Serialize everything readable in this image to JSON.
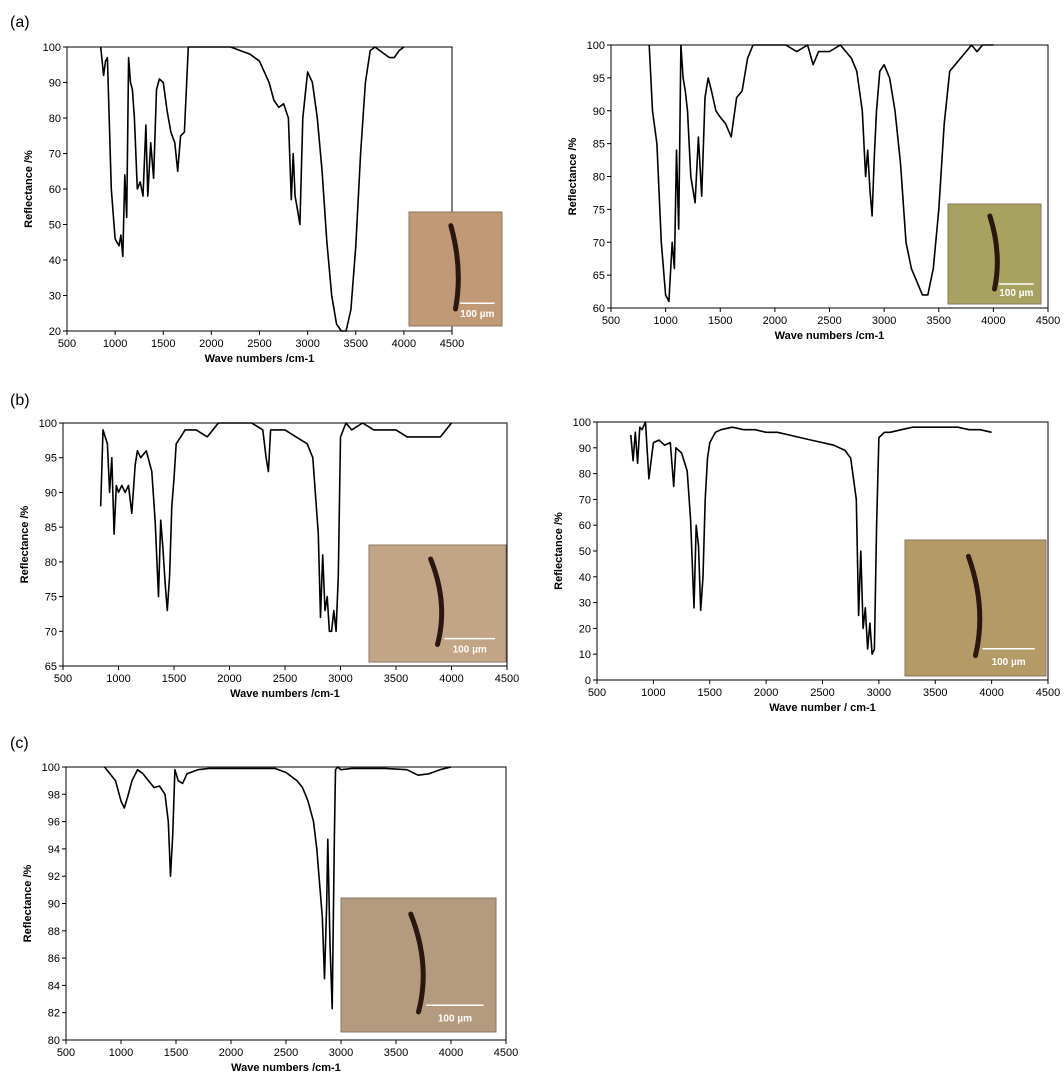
{
  "panel_labels": [
    "(a)",
    "(b)",
    "(c)"
  ],
  "chart_data": [
    {
      "type": "line",
      "panel": "(a)",
      "xlabel": "Wave numbers /cm-1",
      "ylabel": "Reflectance /%",
      "xlim": [
        500,
        4500
      ],
      "ylim": [
        20,
        100
      ],
      "xticks": [
        500,
        1000,
        1500,
        2000,
        2500,
        3000,
        3500,
        4000,
        4500
      ],
      "yticks": [
        20,
        30,
        40,
        50,
        60,
        70,
        80,
        90,
        100
      ],
      "grid": false,
      "inset_scale_label": "100 µm",
      "inset_color": "#c09a76",
      "series": [
        {
          "x": [
            850,
            880,
            900,
            920,
            960,
            1000,
            1040,
            1060,
            1080,
            1100,
            1120,
            1140,
            1160,
            1180,
            1200,
            1230,
            1260,
            1290,
            1320,
            1340,
            1370,
            1400,
            1430,
            1460,
            1500,
            1540,
            1580,
            1620,
            1650,
            1680,
            1720,
            1760,
            1800,
            1900,
            2000,
            2100,
            2200,
            2300,
            2400,
            2500,
            2600,
            2650,
            2700,
            2750,
            2800,
            2830,
            2850,
            2870,
            2890,
            2920,
            2950,
            3000,
            3050,
            3100,
            3150,
            3200,
            3250,
            3300,
            3350,
            3400,
            3450,
            3500,
            3550,
            3600,
            3650,
            3700,
            3750,
            3800,
            3850,
            3900,
            3950,
            4000
          ],
          "y": [
            100,
            92,
            96,
            97,
            60,
            46,
            44,
            47,
            41,
            64,
            52,
            97,
            90,
            88,
            80,
            60,
            62,
            58,
            78,
            58,
            73,
            63,
            88,
            91,
            90,
            82,
            76,
            73,
            65,
            75,
            76,
            100,
            100,
            100,
            100,
            100,
            100,
            99,
            98,
            96,
            90,
            85,
            83,
            84,
            80,
            57,
            70,
            58,
            55,
            50,
            80,
            93,
            90,
            80,
            65,
            45,
            30,
            22,
            20,
            20,
            26,
            44,
            70,
            90,
            99,
            100,
            99,
            98,
            97,
            97,
            99,
            100
          ]
        }
      ]
    },
    {
      "type": "line",
      "panel": "(a)",
      "xlabel": "Wave numbers /cm-1",
      "ylabel": "Reflectance /%",
      "xlim": [
        500,
        4500
      ],
      "ylim": [
        60,
        100
      ],
      "xticks": [
        500,
        1000,
        1500,
        2000,
        2500,
        3000,
        3500,
        4000,
        4500
      ],
      "yticks": [
        60,
        65,
        70,
        75,
        80,
        85,
        90,
        95,
        100
      ],
      "grid": false,
      "inset_scale_label": "100 µm",
      "inset_color": "#a8a260",
      "series": [
        {
          "x": [
            850,
            880,
            920,
            960,
            1000,
            1030,
            1060,
            1080,
            1100,
            1120,
            1140,
            1160,
            1180,
            1200,
            1230,
            1270,
            1300,
            1330,
            1360,
            1390,
            1420,
            1460,
            1500,
            1550,
            1600,
            1650,
            1700,
            1750,
            1800,
            1900,
            2000,
            2100,
            2200,
            2300,
            2350,
            2400,
            2500,
            2600,
            2700,
            2750,
            2800,
            2830,
            2850,
            2870,
            2890,
            2910,
            2930,
            2960,
            3000,
            3050,
            3100,
            3150,
            3200,
            3250,
            3300,
            3350,
            3400,
            3450,
            3500,
            3550,
            3600,
            3650,
            3700,
            3750,
            3800,
            3850,
            3900,
            3950,
            4000
          ],
          "y": [
            100,
            90,
            85,
            70,
            62,
            61,
            70,
            66,
            84,
            72,
            100,
            95,
            93,
            90,
            80,
            76,
            86,
            77,
            92,
            95,
            93,
            90,
            89,
            88,
            86,
            92,
            93,
            98,
            100,
            100,
            100,
            100,
            99,
            100,
            97,
            99,
            99,
            100,
            98,
            96,
            90,
            80,
            84,
            78,
            74,
            83,
            90,
            96,
            97,
            95,
            90,
            82,
            70,
            66,
            64,
            62,
            62,
            66,
            75,
            88,
            96,
            97,
            98,
            99,
            100,
            99,
            100,
            100,
            100
          ]
        }
      ]
    },
    {
      "type": "line",
      "panel": "(b)",
      "xlabel": "Wave numbers /cm-1",
      "ylabel": "Reflectance /%",
      "xlim": [
        500,
        4500
      ],
      "ylim": [
        65,
        100
      ],
      "xticks": [
        500,
        1000,
        1500,
        2000,
        2500,
        3000,
        3500,
        4000,
        4500
      ],
      "yticks": [
        65,
        70,
        75,
        80,
        85,
        90,
        95,
        100
      ],
      "grid": false,
      "inset_scale_label": "100 µm",
      "inset_color": "#c2a486",
      "series": [
        {
          "x": [
            840,
            860,
            880,
            900,
            920,
            940,
            960,
            980,
            1000,
            1030,
            1060,
            1090,
            1120,
            1150,
            1170,
            1200,
            1250,
            1300,
            1330,
            1360,
            1380,
            1400,
            1420,
            1440,
            1460,
            1480,
            1500,
            1520,
            1560,
            1600,
            1700,
            1800,
            1900,
            2000,
            2100,
            2200,
            2300,
            2330,
            2350,
            2370,
            2400,
            2500,
            2600,
            2700,
            2750,
            2800,
            2820,
            2840,
            2860,
            2880,
            2900,
            2920,
            2940,
            2960,
            2980,
            3000,
            3050,
            3100,
            3200,
            3300,
            3400,
            3500,
            3600,
            3700,
            3800,
            3900,
            4000
          ],
          "y": [
            88,
            99,
            98,
            97,
            90,
            95,
            84,
            91,
            90,
            91,
            90,
            91,
            87,
            94,
            96,
            95,
            96,
            93,
            86,
            75,
            86,
            82,
            77,
            73,
            78,
            88,
            92,
            97,
            98,
            99,
            99,
            98,
            100,
            100,
            100,
            100,
            99,
            95,
            93,
            99,
            99,
            99,
            98,
            97,
            95,
            84,
            72,
            81,
            73,
            75,
            70,
            70,
            73,
            70,
            78,
            98,
            100,
            99,
            100,
            99,
            99,
            99,
            98,
            98,
            98,
            98,
            100
          ]
        }
      ]
    },
    {
      "type": "line",
      "panel": "(b)",
      "xlabel": "Wave number / cm-1",
      "ylabel": "Reflectance /%",
      "xlim": [
        500,
        4500
      ],
      "ylim": [
        0,
        100
      ],
      "xticks": [
        500,
        1000,
        1500,
        2000,
        2500,
        3000,
        3500,
        4000,
        4500
      ],
      "yticks": [
        0,
        10,
        20,
        30,
        40,
        50,
        60,
        70,
        80,
        90,
        100
      ],
      "grid": false,
      "inset_scale_label": "100 µm",
      "inset_color": "#b49a66",
      "series": [
        {
          "x": [
            800,
            820,
            840,
            860,
            880,
            900,
            930,
            960,
            1000,
            1050,
            1100,
            1150,
            1180,
            1200,
            1250,
            1300,
            1330,
            1360,
            1380,
            1400,
            1420,
            1440,
            1460,
            1480,
            1500,
            1550,
            1600,
            1700,
            1800,
            1900,
            2000,
            2100,
            2200,
            2300,
            2400,
            2500,
            2600,
            2700,
            2750,
            2800,
            2820,
            2840,
            2860,
            2880,
            2900,
            2920,
            2940,
            2960,
            2980,
            3000,
            3050,
            3100,
            3200,
            3300,
            3400,
            3500,
            3600,
            3700,
            3800,
            3900,
            4000
          ],
          "y": [
            95,
            85,
            96,
            84,
            98,
            97,
            100,
            78,
            92,
            93,
            91,
            92,
            75,
            90,
            88,
            81,
            62,
            28,
            60,
            52,
            27,
            40,
            70,
            86,
            92,
            96,
            97,
            98,
            97,
            97,
            96,
            96,
            95,
            94,
            93,
            92,
            91,
            89,
            86,
            70,
            25,
            50,
            20,
            28,
            12,
            22,
            10,
            12,
            60,
            94,
            96,
            96,
            97,
            98,
            98,
            98,
            98,
            98,
            97,
            97,
            96
          ]
        }
      ]
    },
    {
      "type": "line",
      "panel": "(c)",
      "xlabel": "Wave numbers /cm-1",
      "ylabel": "Reflectance /%",
      "xlim": [
        500,
        4500
      ],
      "ylim": [
        80,
        100
      ],
      "xticks": [
        500,
        1000,
        1500,
        2000,
        2500,
        3000,
        3500,
        4000,
        4500
      ],
      "yticks": [
        80,
        82,
        84,
        86,
        88,
        90,
        92,
        94,
        96,
        98,
        100
      ],
      "grid": false,
      "inset_scale_label": "100 µm",
      "inset_color": "#b49a7e",
      "series": [
        {
          "x": [
            850,
            900,
            950,
            1000,
            1030,
            1060,
            1100,
            1150,
            1200,
            1250,
            1300,
            1350,
            1400,
            1430,
            1450,
            1470,
            1490,
            1520,
            1560,
            1600,
            1700,
            1800,
            1900,
            2000,
            2200,
            2400,
            2500,
            2600,
            2650,
            2700,
            2750,
            2780,
            2800,
            2830,
            2850,
            2870,
            2880,
            2900,
            2920,
            2940,
            2950,
            2970,
            3000,
            3100,
            3200,
            3400,
            3600,
            3700,
            3800,
            3900,
            4000
          ],
          "y": [
            100,
            99.5,
            99,
            97.5,
            97,
            97.8,
            99,
            99.8,
            99.5,
            99,
            98.5,
            98.6,
            98,
            96,
            92,
            95,
            99.8,
            99,
            98.8,
            99.5,
            99.8,
            99.9,
            99.9,
            99.9,
            99.9,
            99.9,
            99.6,
            99,
            98.5,
            97.5,
            96,
            94,
            92,
            89,
            84.5,
            90,
            94.7,
            87,
            82.3,
            95,
            99.8,
            100,
            99.8,
            99.9,
            99.9,
            99.9,
            99.8,
            99.4,
            99.5,
            99.8,
            100
          ]
        }
      ]
    }
  ]
}
